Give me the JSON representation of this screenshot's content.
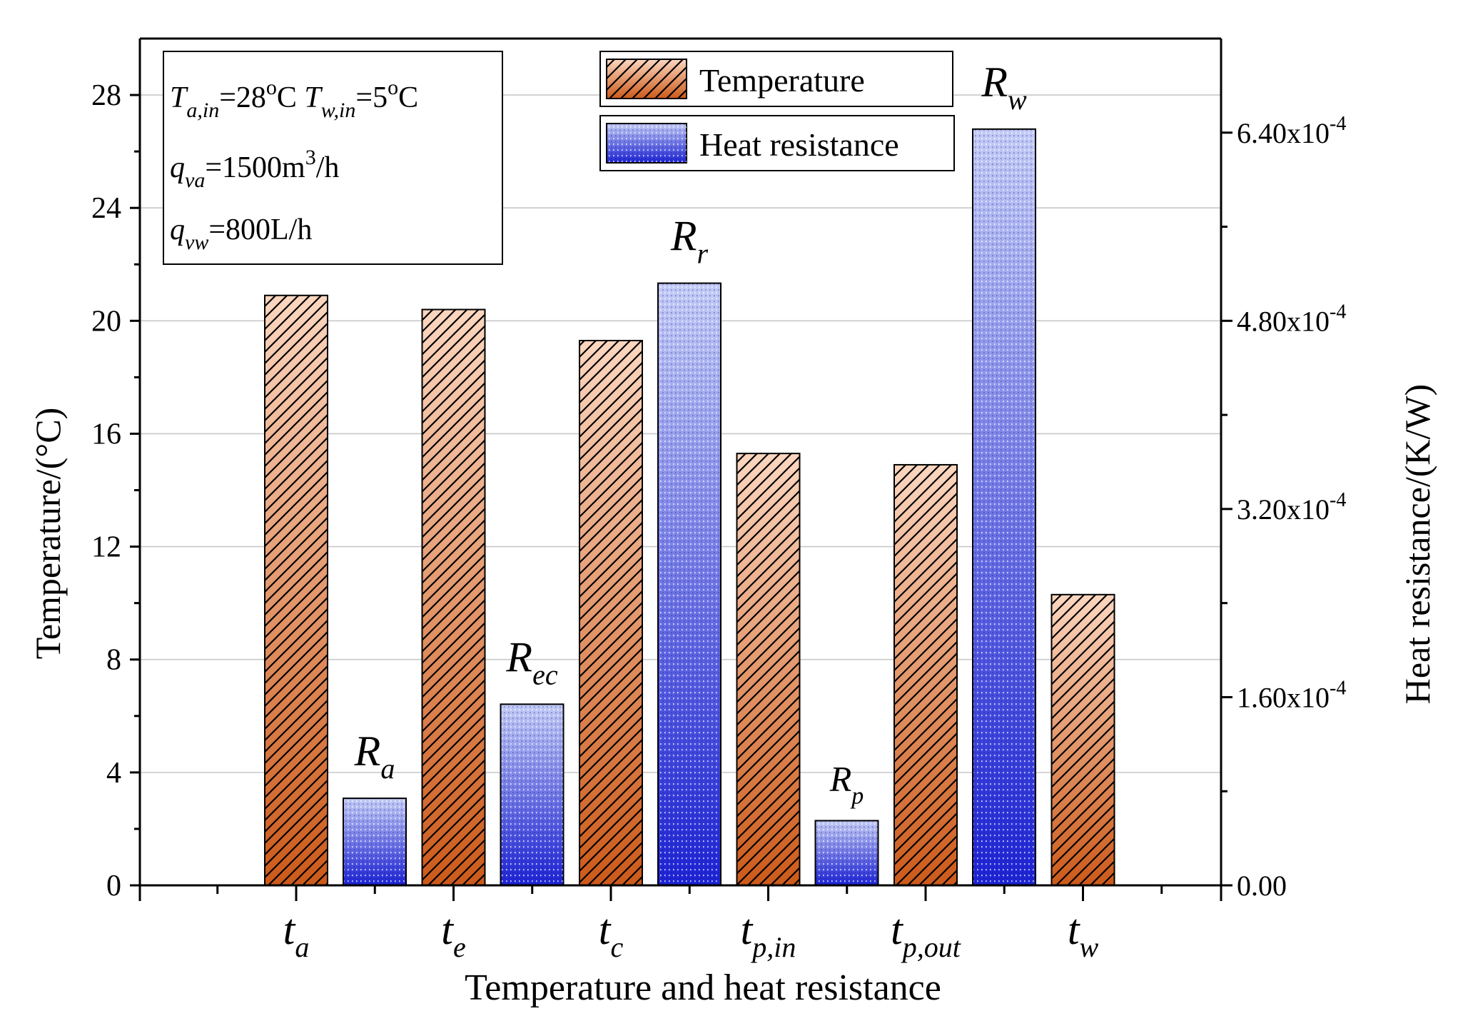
{
  "chart_data": {
    "type": "bar",
    "xlabel": "Temperature and heat resistance",
    "temperature": {
      "name": "Temperature",
      "ylabel": "Temperature/(°C)",
      "ylim": [
        0,
        30
      ],
      "ticks": [
        0,
        4,
        8,
        12,
        16,
        20,
        24,
        28
      ],
      "tick_labels": [
        "0",
        "4",
        "8",
        "12",
        "16",
        "20",
        "24",
        "28"
      ],
      "points": [
        {
          "base": "t",
          "sub": "a",
          "value": 20.9
        },
        {
          "base": "t",
          "sub": "e",
          "value": 20.4
        },
        {
          "base": "t",
          "sub": "c",
          "value": 19.3
        },
        {
          "base": "t",
          "sub": "p,in",
          "value": 15.3
        },
        {
          "base": "t",
          "sub": "p,out",
          "value": 14.9
        },
        {
          "base": "t",
          "sub": "w",
          "value": 10.3
        }
      ]
    },
    "resistance": {
      "name": "Heat resistance",
      "ylabel": "Heat resistance/(K/W)",
      "ylim": [
        0,
        0.00072
      ],
      "ticks": [
        0,
        0.00016,
        0.00032,
        0.00048,
        0.00064
      ],
      "tick_labels": [
        {
          "mant": "0.00",
          "exp": ""
        },
        {
          "mant": "1.60x10",
          "exp": "-4"
        },
        {
          "mant": "3.20x10",
          "exp": "-4"
        },
        {
          "mant": "4.80x10",
          "exp": "-4"
        },
        {
          "mant": "6.40x10",
          "exp": "-4"
        }
      ],
      "points": [
        {
          "base": "R",
          "sub": "a",
          "value": 7.4e-05
        },
        {
          "base": "R",
          "sub": "ec",
          "value": 0.000154
        },
        {
          "base": "R",
          "sub": "r",
          "value": 0.000512
        },
        {
          "base": "R",
          "sub": "p",
          "value": 5.5e-05
        },
        {
          "base": "R",
          "sub": "w",
          "value": 0.000643
        }
      ]
    },
    "annotation": {
      "lines": [
        [
          {
            "t": "T",
            "i": true
          },
          {
            "t": "a,in",
            "i": true,
            "sub": true
          },
          {
            "t": "=28"
          },
          {
            "t": "o",
            "sup": true
          },
          {
            "t": "C  "
          },
          {
            "t": "T",
            "i": true
          },
          {
            "t": "w,in",
            "i": true,
            "sub": true
          },
          {
            "t": "=5"
          },
          {
            "t": "o",
            "sup": true
          },
          {
            "t": "C"
          }
        ],
        [
          {
            "t": "q",
            "i": true
          },
          {
            "t": "va",
            "i": true,
            "sub": true
          },
          {
            "t": "=1500m"
          },
          {
            "t": "3",
            "sup": true
          },
          {
            "t": "/h"
          }
        ],
        [
          {
            "t": "q",
            "i": true
          },
          {
            "t": "vw",
            "i": true,
            "sub": true
          },
          {
            "t": "=800L/h"
          }
        ]
      ]
    },
    "legend": {
      "position": "top-center",
      "items": [
        "Temperature",
        "Heat resistance"
      ]
    },
    "colors": {
      "temp_top": "#fbd6bf",
      "temp_bottom": "#cc5a1a",
      "res_top": "#c2caf6",
      "res_bottom": "#1c22d4",
      "grid": "#c8c8c8",
      "axis": "#000000"
    }
  }
}
